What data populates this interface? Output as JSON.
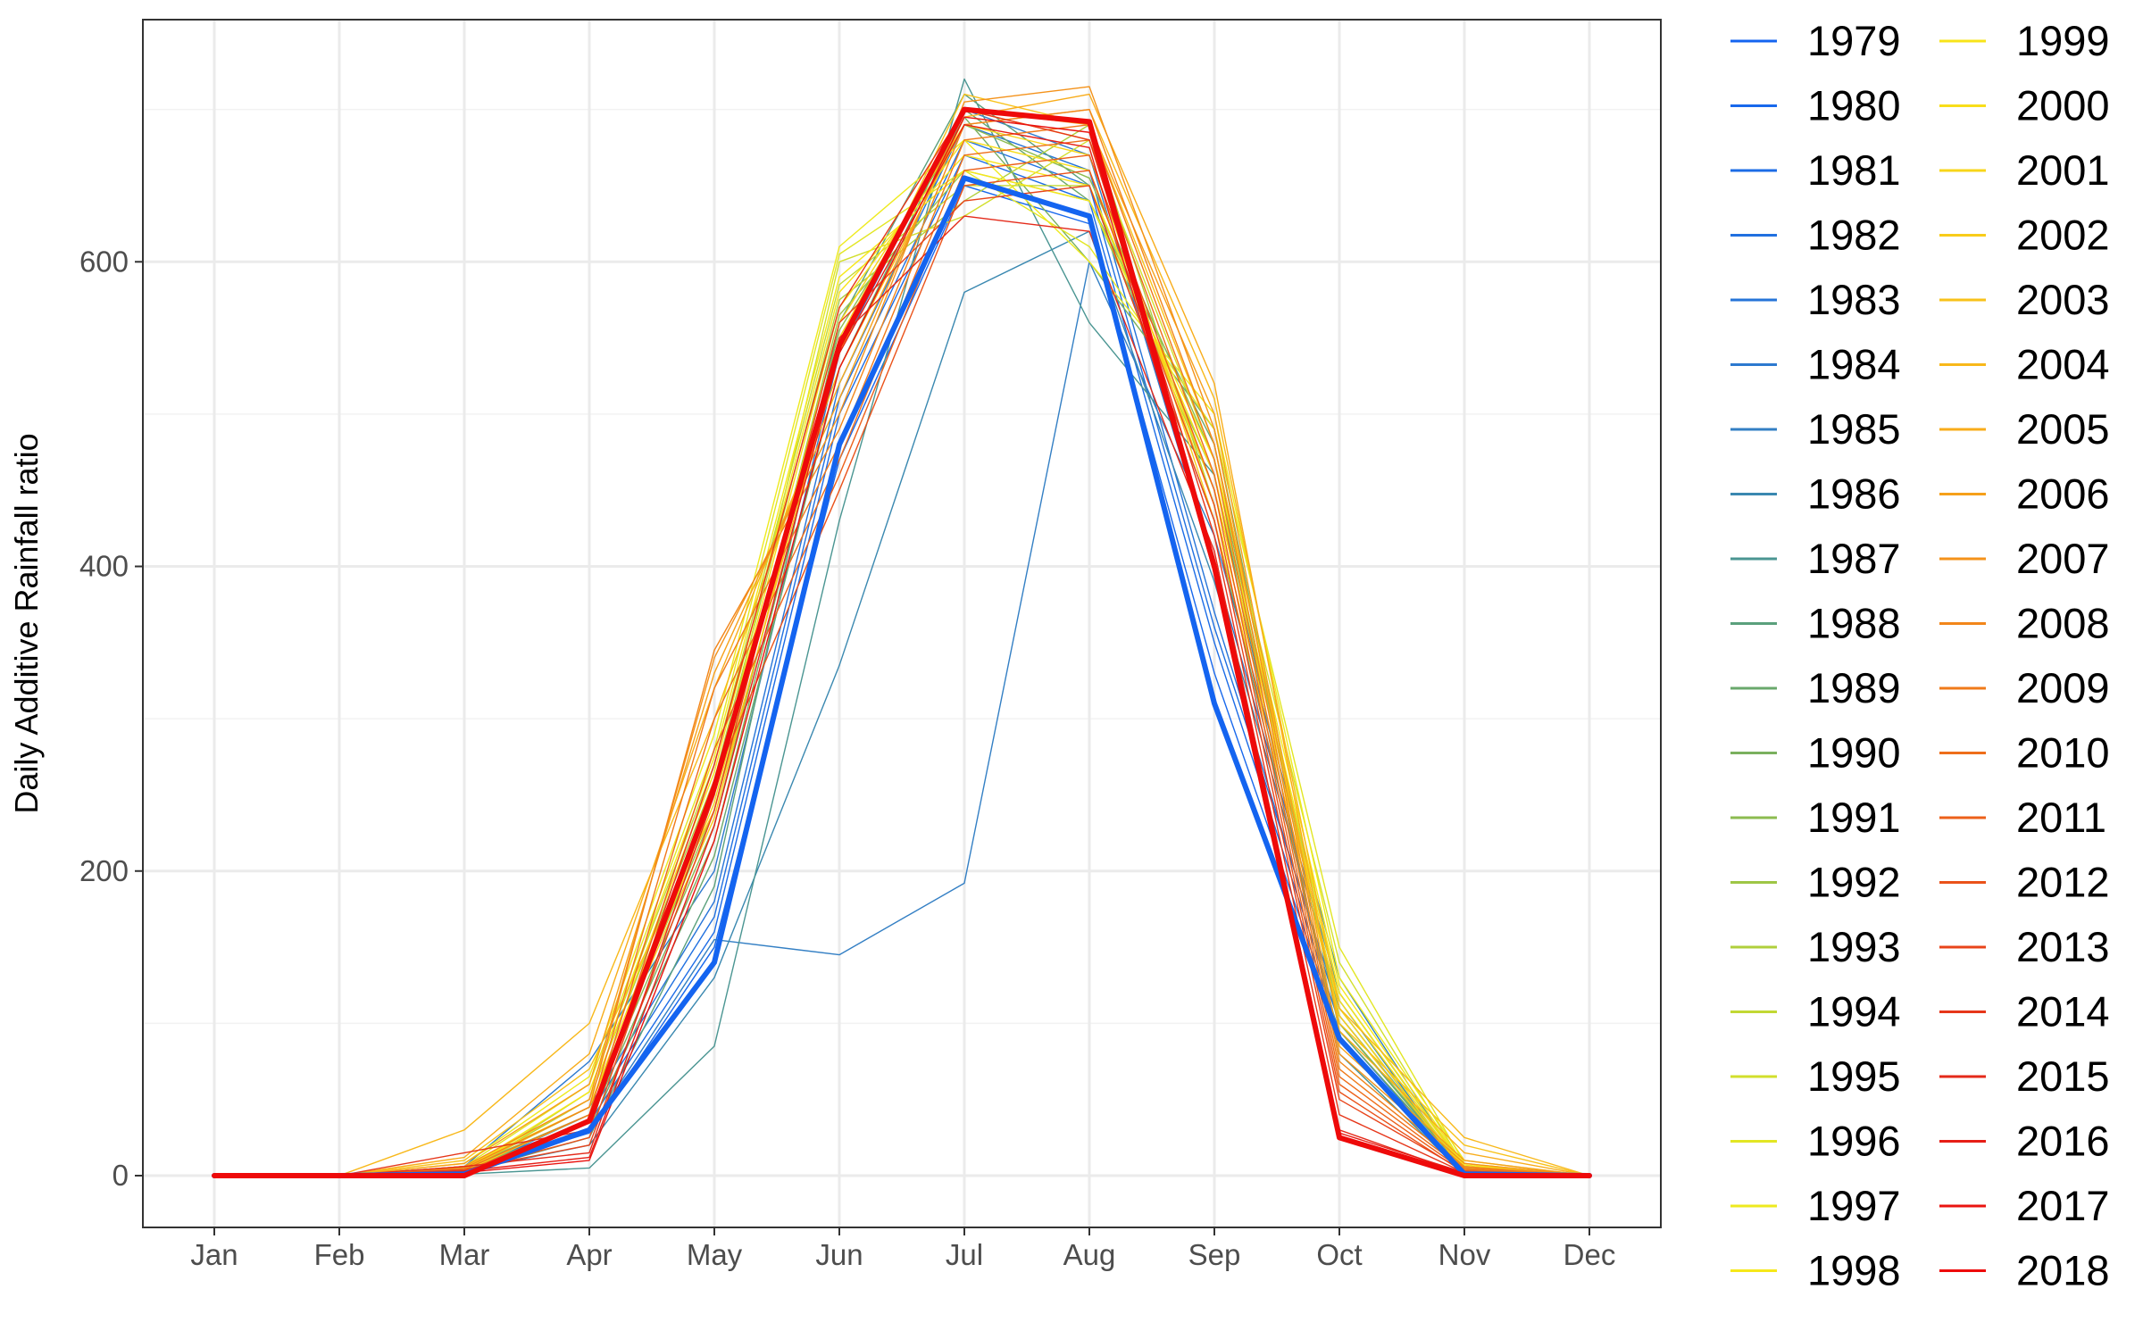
{
  "chart_data": {
    "type": "line",
    "title": "",
    "xlabel": "",
    "ylabel": "Daily Additive Rainfall ratio",
    "categories": [
      "Jan",
      "Feb",
      "Mar",
      "Apr",
      "May",
      "Jun",
      "Jul",
      "Aug",
      "Sep",
      "Oct",
      "Nov",
      "Dec"
    ],
    "ylim": [
      -34,
      759
    ],
    "yticks": [
      0,
      200,
      400,
      600
    ],
    "grid": true,
    "legend_position": "right",
    "series": [
      {
        "name": "1979",
        "color": "#1464f0",
        "values": [
          0,
          0,
          1,
          30,
          140,
          480,
          655,
          630,
          310,
          90,
          1,
          0
        ]
      },
      {
        "name": "1980",
        "color": "#1868ec",
        "values": [
          0,
          0,
          3,
          28,
          150,
          470,
          650,
          625,
          330,
          95,
          2,
          0
        ]
      },
      {
        "name": "1981",
        "color": "#1c6ce6",
        "values": [
          0,
          0,
          5,
          35,
          160,
          500,
          670,
          640,
          350,
          100,
          3,
          0
        ]
      },
      {
        "name": "1982",
        "color": "#2070e0",
        "values": [
          0,
          0,
          2,
          40,
          170,
          510,
          680,
          650,
          360,
          110,
          4,
          0
        ]
      },
      {
        "name": "1983",
        "color": "#2674d8",
        "values": [
          0,
          0,
          4,
          45,
          180,
          520,
          690,
          660,
          370,
          105,
          5,
          0
        ]
      },
      {
        "name": "1984",
        "color": "#2c79cf",
        "values": [
          0,
          0,
          6,
          75,
          200,
          540,
          700,
          670,
          400,
          120,
          6,
          0
        ]
      },
      {
        "name": "1985",
        "color": "#337fc4",
        "values": [
          0,
          0,
          2,
          30,
          155,
          145,
          192,
          600,
          420,
          130,
          3,
          0
        ]
      },
      {
        "name": "1986",
        "color": "#3a88b0",
        "values": [
          0,
          0,
          3,
          20,
          130,
          335,
          580,
          620,
          390,
          115,
          2,
          0
        ]
      },
      {
        "name": "1987",
        "color": "#4a9592",
        "values": [
          0,
          0,
          1,
          5,
          85,
          430,
          720,
          560,
          460,
          80,
          1,
          0
        ]
      },
      {
        "name": "1988",
        "color": "#5aa07c",
        "values": [
          0,
          0,
          2,
          25,
          190,
          560,
          710,
          650,
          430,
          90,
          2,
          0
        ]
      },
      {
        "name": "1989",
        "color": "#6aa86c",
        "values": [
          0,
          0,
          3,
          30,
          210,
          530,
          700,
          640,
          480,
          100,
          3,
          0
        ]
      },
      {
        "name": "1990",
        "color": "#7ab05e",
        "values": [
          0,
          0,
          4,
          35,
          220,
          545,
          695,
          600,
          490,
          95,
          4,
          0
        ]
      },
      {
        "name": "1991",
        "color": "#8cbb50",
        "values": [
          0,
          0,
          5,
          40,
          230,
          555,
          690,
          655,
          470,
          100,
          5,
          0
        ]
      },
      {
        "name": "1992",
        "color": "#9ec646",
        "values": [
          0,
          0,
          4,
          45,
          240,
          565,
          660,
          640,
          460,
          105,
          4,
          0
        ]
      },
      {
        "name": "1993",
        "color": "#b0cf3c",
        "values": [
          0,
          0,
          3,
          50,
          260,
          575,
          640,
          690,
          440,
          110,
          3,
          0
        ]
      },
      {
        "name": "1994",
        "color": "#c2d834",
        "values": [
          0,
          0,
          2,
          55,
          270,
          585,
          650,
          650,
          450,
          120,
          5,
          0
        ]
      },
      {
        "name": "1995",
        "color": "#d2df2c",
        "values": [
          0,
          0,
          3,
          35,
          250,
          600,
          630,
          680,
          470,
          140,
          6,
          0
        ]
      },
      {
        "name": "1996",
        "color": "#e2e624",
        "values": [
          0,
          0,
          6,
          60,
          280,
          605,
          660,
          610,
          490,
          150,
          8,
          0
        ]
      },
      {
        "name": "1997",
        "color": "#eeea1e",
        "values": [
          0,
          0,
          8,
          65,
          290,
          610,
          680,
          600,
          500,
          130,
          10,
          0
        ]
      },
      {
        "name": "1998",
        "color": "#f6e81a",
        "values": [
          0,
          0,
          4,
          55,
          275,
          590,
          660,
          640,
          470,
          125,
          7,
          0
        ]
      },
      {
        "name": "1999",
        "color": "#f8e41a",
        "values": [
          0,
          0,
          5,
          50,
          265,
          580,
          670,
          650,
          460,
          120,
          6,
          0
        ]
      },
      {
        "name": "2000",
        "color": "#f8de1a",
        "values": [
          0,
          0,
          6,
          45,
          255,
          570,
          680,
          660,
          450,
          115,
          5,
          0
        ]
      },
      {
        "name": "2001",
        "color": "#f8d61a",
        "values": [
          0,
          0,
          3,
          40,
          245,
          560,
          690,
          670,
          440,
          110,
          4,
          0
        ]
      },
      {
        "name": "2002",
        "color": "#f8cc1a",
        "values": [
          0,
          0,
          4,
          45,
          235,
          550,
          700,
          680,
          430,
          105,
          3,
          0
        ]
      },
      {
        "name": "2003",
        "color": "#f8c21a",
        "values": [
          0,
          0,
          10,
          70,
          240,
          540,
          710,
          690,
          480,
          100,
          20,
          0
        ]
      },
      {
        "name": "2004",
        "color": "#f8b81a",
        "values": [
          0,
          0,
          30,
          100,
          300,
          530,
          690,
          700,
          510,
          110,
          25,
          0
        ]
      },
      {
        "name": "2005",
        "color": "#f8ac1a",
        "values": [
          0,
          0,
          12,
          80,
          320,
          520,
          695,
          710,
          520,
          95,
          15,
          0
        ]
      },
      {
        "name": "2006",
        "color": "#f6a01a",
        "values": [
          0,
          0,
          8,
          60,
          330,
          510,
          700,
          690,
          500,
          85,
          10,
          0
        ]
      },
      {
        "name": "2007",
        "color": "#f4921a",
        "values": [
          0,
          0,
          6,
          50,
          340,
          500,
          705,
          715,
          490,
          80,
          8,
          0
        ]
      },
      {
        "name": "2008",
        "color": "#f2861a",
        "values": [
          0,
          0,
          5,
          45,
          345,
          490,
          690,
          700,
          480,
          75,
          6,
          0
        ]
      },
      {
        "name": "2009",
        "color": "#f07a1a",
        "values": [
          0,
          0,
          4,
          40,
          320,
          480,
          680,
          690,
          470,
          70,
          5,
          0
        ]
      },
      {
        "name": "2010",
        "color": "#ee6e1a",
        "values": [
          0,
          0,
          3,
          35,
          300,
          470,
          670,
          680,
          460,
          65,
          4,
          0
        ]
      },
      {
        "name": "2011",
        "color": "#ec601a",
        "values": [
          0,
          0,
          2,
          30,
          280,
          460,
          660,
          670,
          450,
          60,
          3,
          0
        ]
      },
      {
        "name": "2012",
        "color": "#ea521a",
        "values": [
          0,
          0,
          3,
          25,
          260,
          450,
          650,
          660,
          440,
          55,
          2,
          0
        ]
      },
      {
        "name": "2013",
        "color": "#e8441a",
        "values": [
          0,
          0,
          4,
          20,
          240,
          560,
          640,
          650,
          430,
          50,
          3,
          0
        ]
      },
      {
        "name": "2014",
        "color": "#e6361a",
        "values": [
          0,
          0,
          15,
          30,
          270,
          570,
          700,
          680,
          420,
          40,
          2,
          0
        ]
      },
      {
        "name": "2015",
        "color": "#e42a1a",
        "values": [
          0,
          0,
          6,
          15,
          250,
          550,
          630,
          620,
          410,
          30,
          1,
          0
        ]
      },
      {
        "name": "2016",
        "color": "#e61e16",
        "values": [
          0,
          0,
          3,
          12,
          230,
          540,
          690,
          675,
          400,
          28,
          2,
          0
        ]
      },
      {
        "name": "2017",
        "color": "#ea1410",
        "values": [
          0,
          0,
          2,
          10,
          220,
          530,
          695,
          685,
          395,
          26,
          1,
          0
        ]
      },
      {
        "name": "2018",
        "color": "#ee0a0a",
        "values": [
          0,
          0,
          0,
          36,
          255,
          545,
          700,
          692,
          400,
          25,
          0,
          0
        ]
      }
    ]
  }
}
